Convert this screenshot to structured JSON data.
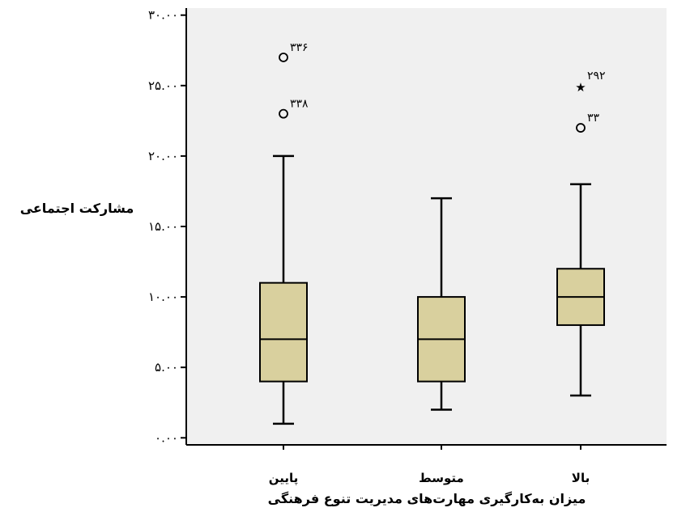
{
  "chart_data": {
    "type": "boxplot",
    "xlabel": "میزان به‌کارگیری مهارت‌های مدیریت تنوع فرهنگی",
    "ylabel": "مشارکت اجتماعی",
    "ylim": [
      -0.5,
      30.5
    ],
    "yticks": [
      0,
      5,
      10,
      15,
      20,
      25,
      30
    ],
    "ytick_labels": [
      "۰.۰۰",
      "۵.۰۰",
      "۱۰.۰۰",
      "۱۵.۰۰",
      "۲۰.۰۰",
      "۲۵.۰۰",
      "۳۰.۰۰"
    ],
    "grid": false,
    "categories": [
      "پایین",
      "متوسط",
      "بالا"
    ],
    "boxes": [
      {
        "category": "پایین",
        "whisker_low": 1,
        "q1": 4,
        "median": 7,
        "q3": 11,
        "whisker_high": 20,
        "outliers": [
          {
            "value": 27,
            "label": "۳۳۶",
            "marker": "circle"
          },
          {
            "value": 23,
            "label": "۳۳۸",
            "marker": "circle"
          }
        ]
      },
      {
        "category": "متوسط",
        "whisker_low": 2,
        "q1": 4,
        "median": 7,
        "q3": 10,
        "whisker_high": 17,
        "outliers": []
      },
      {
        "category": "بالا",
        "whisker_low": 3,
        "q1": 8,
        "median": 10,
        "q3": 12,
        "whisker_high": 18,
        "outliers": [
          {
            "value": 25,
            "label": "۲۹۲",
            "marker": "star"
          },
          {
            "value": 22,
            "label": "۳۳",
            "marker": "circle"
          }
        ]
      }
    ],
    "colors": {
      "plot_background": "#f0f0f0",
      "box_fill": "#d9d09e",
      "stroke": "#000000"
    }
  }
}
